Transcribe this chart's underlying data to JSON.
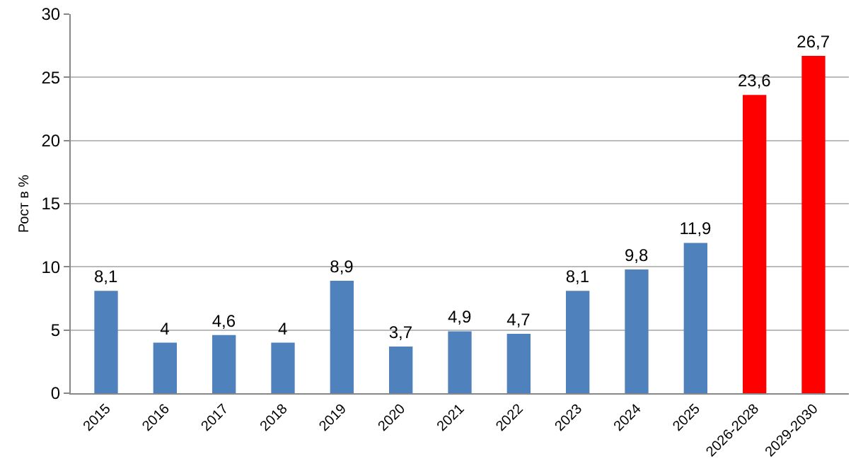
{
  "chart_data": {
    "type": "bar",
    "ylabel": "Рост в %",
    "categories": [
      "2015",
      "2016",
      "2017",
      "2018",
      "2019",
      "2020",
      "2021",
      "2022",
      "2023",
      "2024",
      "2025",
      "2026-2028",
      "2029-2030"
    ],
    "values": [
      8.1,
      4,
      4.6,
      4,
      8.9,
      3.7,
      4.9,
      4.7,
      8.1,
      9.8,
      11.9,
      23.6,
      26.7
    ],
    "value_labels": [
      "8,1",
      "4",
      "4,6",
      "4",
      "8,9",
      "3,7",
      "4,9",
      "4,7",
      "8,1",
      "9,8",
      "11,9",
      "23,6",
      "26,7"
    ],
    "colors": [
      "#4f81bd",
      "#4f81bd",
      "#4f81bd",
      "#4f81bd",
      "#4f81bd",
      "#4f81bd",
      "#4f81bd",
      "#4f81bd",
      "#4f81bd",
      "#4f81bd",
      "#4f81bd",
      "#ff0000",
      "#ff0000"
    ],
    "ylim": [
      0,
      30
    ],
    "yticks": [
      0,
      5,
      10,
      15,
      20,
      25,
      30
    ],
    "grid": "y"
  }
}
